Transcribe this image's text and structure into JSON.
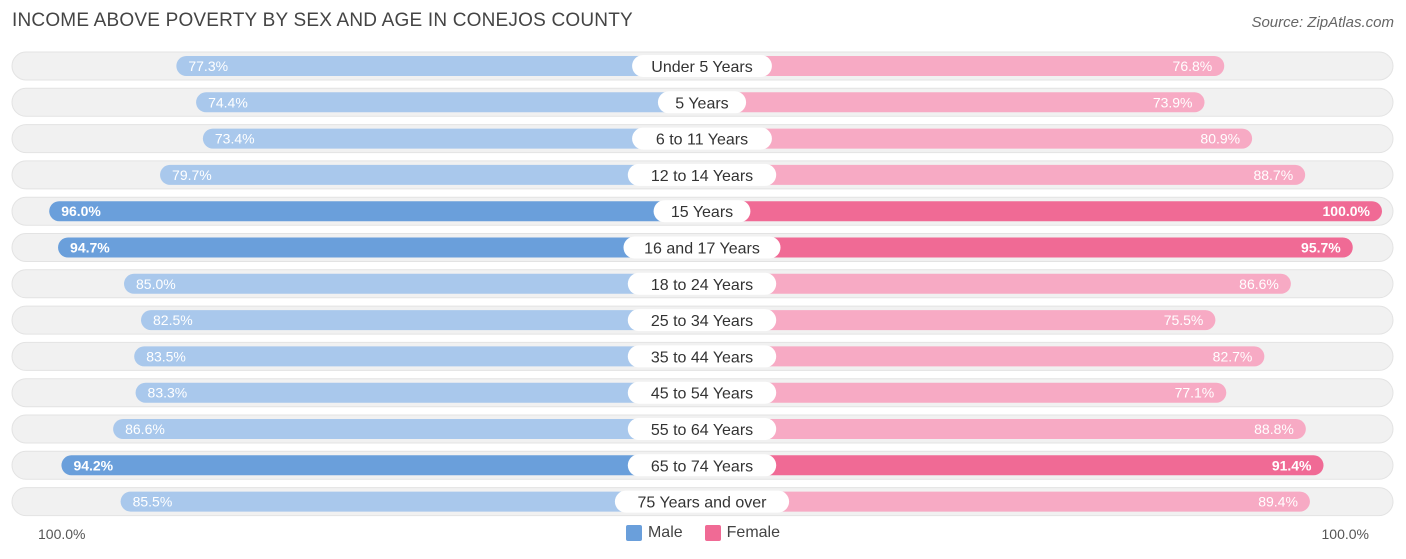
{
  "chart_data": {
    "type": "bar",
    "title": "INCOME ABOVE POVERTY BY SEX AND AGE IN CONEJOS COUNTY",
    "source": "Source: ZipAtlas.com",
    "categories": [
      "Under 5 Years",
      "5 Years",
      "6 to 11 Years",
      "12 to 14 Years",
      "15 Years",
      "16 and 17 Years",
      "18 to 24 Years",
      "25 to 34 Years",
      "35 to 44 Years",
      "45 to 54 Years",
      "55 to 64 Years",
      "65 to 74 Years",
      "75 Years and over"
    ],
    "series": [
      {
        "name": "Male",
        "values": [
          77.3,
          74.4,
          73.4,
          79.7,
          96.0,
          94.7,
          85.0,
          82.5,
          83.5,
          83.3,
          86.6,
          94.2,
          85.5
        ],
        "labels": [
          "77.3%",
          "74.4%",
          "73.4%",
          "79.7%",
          "96.0%",
          "94.7%",
          "85.0%",
          "82.5%",
          "83.5%",
          "83.3%",
          "86.6%",
          "94.2%",
          "85.5%"
        ]
      },
      {
        "name": "Female",
        "values": [
          76.8,
          73.9,
          80.9,
          88.7,
          100.0,
          95.7,
          86.6,
          75.5,
          82.7,
          77.1,
          88.8,
          91.4,
          89.4
        ],
        "labels": [
          "76.8%",
          "73.9%",
          "80.9%",
          "88.7%",
          "100.0%",
          "95.7%",
          "86.6%",
          "75.5%",
          "82.7%",
          "77.1%",
          "88.8%",
          "91.4%",
          "89.4%"
        ]
      }
    ],
    "axis_left_label": "100.0%",
    "axis_right_label": "100.0%",
    "xlim": [
      0,
      100
    ],
    "legend_position": "bottom-center"
  },
  "colors": {
    "male_light": "#a9c8ec",
    "male_dark": "#6a9fdb",
    "female_light": "#f7aac4",
    "female_dark": "#f06a95",
    "track": "#f1f1f1"
  }
}
